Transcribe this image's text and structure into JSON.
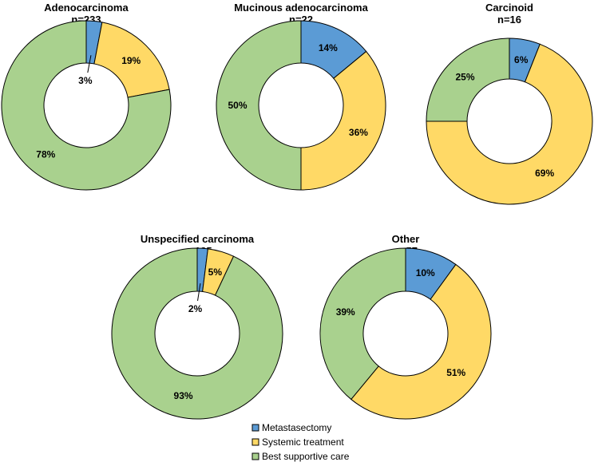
{
  "chart_data": [
    {
      "type": "donut",
      "title": "Adenocarcinoma",
      "subtitle": "n=233",
      "categories": [
        "Metastasectomy",
        "Systemic treatment",
        "Best supportive care"
      ],
      "values": [
        3,
        19,
        78
      ],
      "labels": [
        "3%",
        "19%",
        "78%"
      ]
    },
    {
      "type": "donut",
      "title": "Mucinous adenocarcinoma",
      "subtitle": "n=22",
      "categories": [
        "Metastasectomy",
        "Systemic treatment",
        "Best supportive care"
      ],
      "values": [
        14,
        36,
        50
      ],
      "labels": [
        "14%",
        "36%",
        "50%"
      ]
    },
    {
      "type": "donut",
      "title": "Carcinoid",
      "subtitle": "n=16",
      "categories": [
        "Metastasectomy",
        "Systemic treatment",
        "Best supportive care"
      ],
      "values": [
        6,
        69,
        25
      ],
      "labels": [
        "6%",
        "69%",
        "25%"
      ]
    },
    {
      "type": "donut",
      "title": "Unspecified carcinoma",
      "subtitle": "n=185",
      "categories": [
        "Metastasectomy",
        "Systemic treatment",
        "Best supportive care"
      ],
      "values": [
        2,
        5,
        93
      ],
      "labels": [
        "2%",
        "5%",
        "93%"
      ]
    },
    {
      "type": "donut",
      "title": "Other",
      "subtitle": "n=57",
      "categories": [
        "Metastasectomy",
        "Systemic treatment",
        "Best supportive care"
      ],
      "values": [
        10,
        51,
        39
      ],
      "labels": [
        "10%",
        "51%",
        "39%"
      ]
    }
  ],
  "legend": {
    "placement": "bottom-center",
    "items": [
      {
        "label": "Metastasectomy",
        "color": "#5b9bd5"
      },
      {
        "label": "Systemic treatment",
        "color": "#ffd966"
      },
      {
        "label": "Best supportive care",
        "color": "#a9d18e"
      }
    ]
  },
  "colors": {
    "metastasectomy": "#5b9bd5",
    "systemic": "#ffd966",
    "supportive": "#a9d18e",
    "outline": "#000000"
  }
}
